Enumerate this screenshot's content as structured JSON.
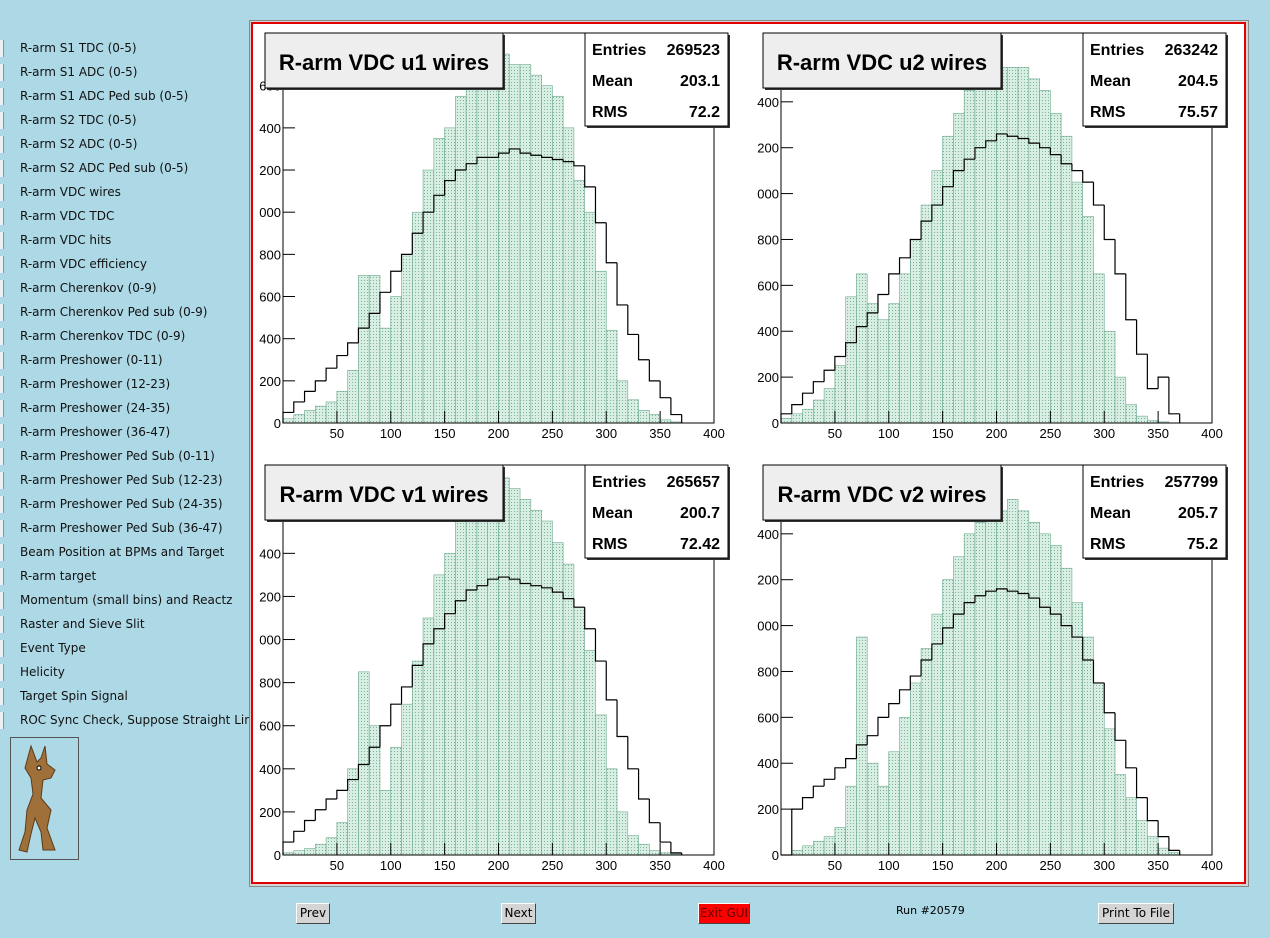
{
  "sidebar": {
    "items": [
      "R-arm S1 TDC (0-5)",
      "R-arm S1 ADC (0-5)",
      "R-arm S1 ADC Ped sub (0-5)",
      "R-arm S2 TDC (0-5)",
      "R-arm S2 ADC (0-5)",
      "R-arm S2 ADC Ped sub (0-5)",
      "R-arm VDC wires",
      "R-arm VDC TDC",
      "R-arm VDC hits",
      "R-arm VDC efficiency",
      "R-arm Cherenkov (0-9)",
      "R-arm Cherenkov Ped sub (0-9)",
      "R-arm Cherenkov TDC (0-9)",
      "R-arm Preshower (0-11)",
      "R-arm Preshower (12-23)",
      "R-arm Preshower (24-35)",
      "R-arm Preshower (36-47)",
      "R-arm Preshower Ped Sub (0-11)",
      "R-arm Preshower Ped Sub (12-23)",
      "R-arm Preshower Ped Sub (24-35)",
      "R-arm Preshower Ped Sub (36-47)",
      "Beam Position at BPMs and Target",
      "R-arm target",
      "Momentum (small bins) and Reactz",
      "Raster and Sieve Slit",
      "Event Type",
      "Helicity",
      "Target Spin Signal",
      "ROC Sync Check, Suppose Straight Lines"
    ]
  },
  "chart_data": [
    {
      "type": "histogram",
      "title": "R-arm VDC u1 wires",
      "stats": [
        {
          "label": "Entries",
          "value": 269523
        },
        {
          "label": "Mean",
          "value": 203.1
        },
        {
          "label": "RMS",
          "value": 72.2
        }
      ],
      "bins": [
        0,
        10,
        20,
        30,
        40,
        50,
        60,
        70,
        80,
        90,
        100,
        110,
        120,
        130,
        140,
        150,
        160,
        170,
        180,
        190,
        200,
        210,
        220,
        230,
        240,
        250,
        260,
        270,
        280,
        290,
        300,
        310,
        320,
        330,
        340,
        350,
        360,
        370
      ],
      "series": [
        {
          "color": "#6aa88c",
          "values": [
            20,
            40,
            60,
            80,
            100,
            150,
            250,
            700,
            700,
            450,
            600,
            800,
            1000,
            1200,
            1350,
            1400,
            1550,
            1600,
            1650,
            1700,
            1750,
            1700,
            1700,
            1650,
            1600,
            1550,
            1400,
            1150,
            1000,
            720,
            440,
            200,
            110,
            60,
            40,
            15,
            5
          ]
        },
        {
          "color": "#000000",
          "values": [
            50,
            100,
            150,
            200,
            260,
            320,
            380,
            450,
            520,
            620,
            720,
            800,
            900,
            1000,
            1080,
            1150,
            1200,
            1230,
            1260,
            1260,
            1280,
            1300,
            1280,
            1270,
            1260,
            1250,
            1240,
            1220,
            1120,
            950,
            760,
            560,
            420,
            300,
            200,
            120,
            40
          ]
        }
      ],
      "xlim": [
        0,
        400
      ],
      "xticks": [
        50,
        100,
        150,
        200,
        250,
        300,
        350,
        400
      ],
      "ylim": [
        0,
        1850
      ],
      "yticks": [
        0,
        200,
        400,
        600,
        800,
        {
          "value": 1000,
          "label": "000"
        },
        {
          "value": 1200,
          "label": "200"
        },
        {
          "value": 1400,
          "label": "400"
        },
        {
          "value": 1600,
          "label": "600"
        }
      ]
    },
    {
      "type": "histogram",
      "title": "R-arm VDC u2 wires",
      "stats": [
        {
          "label": "Entries",
          "value": 263242
        },
        {
          "label": "Mean",
          "value": 204.5
        },
        {
          "label": "RMS",
          "value": 75.57
        }
      ],
      "bins": [
        0,
        10,
        20,
        30,
        40,
        50,
        60,
        70,
        80,
        90,
        100,
        110,
        120,
        130,
        140,
        150,
        160,
        170,
        180,
        190,
        200,
        210,
        220,
        230,
        240,
        250,
        260,
        270,
        280,
        290,
        300,
        310,
        320,
        330,
        340,
        350,
        360,
        370
      ],
      "series": [
        {
          "color": "#6aa88c",
          "values": [
            20,
            40,
            60,
            100,
            150,
            250,
            550,
            650,
            520,
            450,
            520,
            650,
            800,
            950,
            1100,
            1250,
            1350,
            1450,
            1500,
            1500,
            1550,
            1550,
            1550,
            1500,
            1450,
            1350,
            1250,
            1050,
            900,
            650,
            400,
            200,
            80,
            30,
            10,
            5,
            0
          ]
        },
        {
          "color": "#000000",
          "values": [
            40,
            80,
            130,
            180,
            230,
            290,
            350,
            420,
            480,
            560,
            650,
            720,
            800,
            880,
            950,
            1030,
            1100,
            1150,
            1200,
            1230,
            1260,
            1250,
            1240,
            1220,
            1200,
            1170,
            1130,
            1100,
            1050,
            950,
            800,
            650,
            450,
            300,
            150,
            200,
            40
          ]
        }
      ],
      "xlim": [
        0,
        400
      ],
      "xticks": [
        50,
        100,
        150,
        200,
        250,
        300,
        350,
        400
      ],
      "ylim": [
        0,
        1700
      ],
      "yticks": [
        0,
        200,
        400,
        600,
        800,
        {
          "value": 1000,
          "label": "000"
        },
        {
          "value": 1200,
          "label": "200"
        },
        {
          "value": 1400,
          "label": "400"
        }
      ]
    },
    {
      "type": "histogram",
      "title": "R-arm VDC v1 wires",
      "stats": [
        {
          "label": "Entries",
          "value": 265657
        },
        {
          "label": "Mean",
          "value": 200.7
        },
        {
          "label": "RMS",
          "value": 72.42
        }
      ],
      "bins": [
        0,
        10,
        20,
        30,
        40,
        50,
        60,
        70,
        80,
        90,
        100,
        110,
        120,
        130,
        140,
        150,
        160,
        170,
        180,
        190,
        200,
        210,
        220,
        230,
        240,
        250,
        260,
        270,
        280,
        290,
        300,
        310,
        320,
        330,
        340,
        350,
        360,
        370
      ],
      "series": [
        {
          "color": "#6aa88c",
          "values": [
            10,
            20,
            30,
            50,
            80,
            150,
            400,
            850,
            600,
            300,
            500,
            700,
            900,
            1100,
            1300,
            1400,
            1550,
            1600,
            1650,
            1700,
            1750,
            1700,
            1650,
            1600,
            1550,
            1450,
            1350,
            1150,
            950,
            650,
            400,
            200,
            90,
            50,
            20,
            10,
            5
          ]
        },
        {
          "color": "#000000",
          "values": [
            60,
            110,
            160,
            210,
            260,
            300,
            350,
            420,
            500,
            600,
            700,
            780,
            880,
            980,
            1050,
            1120,
            1180,
            1230,
            1250,
            1280,
            1290,
            1280,
            1260,
            1250,
            1240,
            1220,
            1190,
            1150,
            1050,
            900,
            720,
            550,
            400,
            260,
            150,
            60,
            10
          ]
        }
      ],
      "xlim": [
        0,
        400
      ],
      "xticks": [
        50,
        100,
        150,
        200,
        250,
        300,
        350,
        400
      ],
      "ylim": [
        0,
        1810
      ],
      "yticks": [
        0,
        200,
        400,
        600,
        800,
        {
          "value": 1000,
          "label": "000"
        },
        {
          "value": 1200,
          "label": "200"
        },
        {
          "value": 1400,
          "label": "400"
        }
      ]
    },
    {
      "type": "histogram",
      "title": "R-arm VDC v2 wires",
      "stats": [
        {
          "label": "Entries",
          "value": 257799
        },
        {
          "label": "Mean",
          "value": 205.7
        },
        {
          "label": "RMS",
          "value": 75.2
        }
      ],
      "bins": [
        0,
        10,
        20,
        30,
        40,
        50,
        60,
        70,
        80,
        90,
        100,
        110,
        120,
        130,
        140,
        150,
        160,
        170,
        180,
        190,
        200,
        210,
        220,
        230,
        240,
        250,
        260,
        270,
        280,
        290,
        300,
        310,
        320,
        330,
        340,
        350,
        360,
        370
      ],
      "series": [
        {
          "color": "#6aa88c",
          "values": [
            0,
            20,
            40,
            60,
            80,
            120,
            300,
            950,
            400,
            300,
            450,
            600,
            750,
            900,
            1050,
            1200,
            1300,
            1400,
            1450,
            1500,
            1500,
            1550,
            1500,
            1450,
            1400,
            1350,
            1250,
            1100,
            950,
            750,
            550,
            350,
            250,
            150,
            80,
            30,
            10
          ]
        },
        {
          "color": "#000000",
          "values": [
            0,
            200,
            250,
            300,
            330,
            380,
            420,
            480,
            520,
            600,
            660,
            720,
            780,
            850,
            920,
            990,
            1050,
            1100,
            1130,
            1150,
            1160,
            1150,
            1140,
            1120,
            1080,
            1050,
            1000,
            950,
            850,
            750,
            620,
            500,
            380,
            250,
            150,
            80,
            20
          ]
        }
      ],
      "xlim": [
        0,
        400
      ],
      "xticks": [
        50,
        100,
        150,
        200,
        250,
        300,
        350,
        400
      ],
      "ylim": [
        0,
        1700
      ],
      "yticks": [
        0,
        200,
        400,
        600,
        800,
        {
          "value": 1000,
          "label": "000"
        },
        {
          "value": 1200,
          "label": "200"
        },
        {
          "value": 1400,
          "label": "400"
        }
      ]
    }
  ],
  "footer": {
    "prev": "Prev",
    "next": "Next",
    "exit": "Exit GUI",
    "run": "Run #20579",
    "print": "Print To File"
  }
}
